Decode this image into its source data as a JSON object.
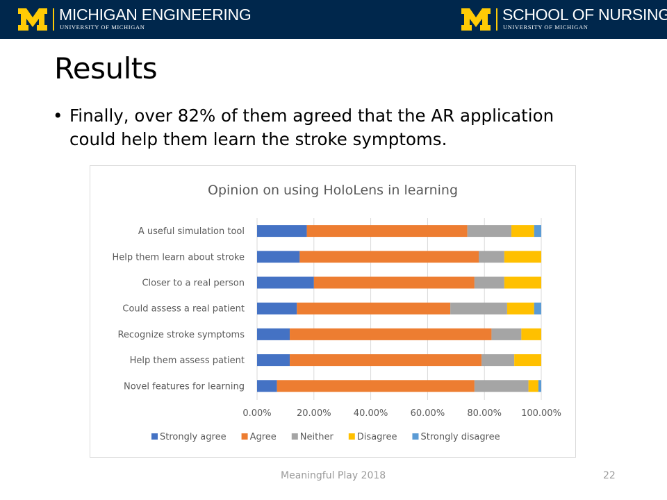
{
  "header": {
    "left_brand": {
      "name": "MICHIGAN ENGINEERING",
      "sub": "UNIVERSITY OF MICHIGAN"
    },
    "right_brand": {
      "name": "SCHOOL OF NURSING",
      "sub": "UNIVERSITY OF MICHIGAN"
    },
    "colors": {
      "navy": "#00274C",
      "maize": "#FFCB05"
    }
  },
  "slide": {
    "title": "Results",
    "bullet_symbol": "•",
    "bullet": "Finally, over 82% of them agreed that the AR application could help them learn the stroke symptoms."
  },
  "chart_data": {
    "type": "bar",
    "orientation": "horizontal",
    "stacked": "percent",
    "title": "Opinion on using HoloLens in learning",
    "xlabel": "",
    "ylabel": "",
    "xlim": [
      0,
      1
    ],
    "x_tick_labels": [
      "0.00%",
      "20.00%",
      "40.00%",
      "60.00%",
      "80.00%",
      "100.00%"
    ],
    "grid": true,
    "legend_position": "bottom",
    "categories": [
      "A useful simulation tool",
      "Help them learn about stroke",
      "Closer to a real person",
      "Could assess a real patient",
      "Recognize stroke symptoms",
      "Help them assess patient",
      "Novel features for learning"
    ],
    "series": [
      {
        "name": "Strongly agree",
        "color": "#4472C4",
        "values": [
          0.175,
          0.15,
          0.2,
          0.14,
          0.115,
          0.115,
          0.07
        ]
      },
      {
        "name": "Agree",
        "color": "#ED7D31",
        "values": [
          0.565,
          0.63,
          0.565,
          0.54,
          0.71,
          0.675,
          0.695
        ]
      },
      {
        "name": "Neither",
        "color": "#A5A5A5",
        "values": [
          0.155,
          0.09,
          0.105,
          0.2,
          0.105,
          0.115,
          0.19
        ]
      },
      {
        "name": "Disagree",
        "color": "#FFC000",
        "values": [
          0.08,
          0.13,
          0.13,
          0.095,
          0.07,
          0.095,
          0.035
        ]
      },
      {
        "name": "Strongly disagree",
        "color": "#5B9BD5",
        "values": [
          0.025,
          0.0,
          0.0,
          0.025,
          0.0,
          0.0,
          0.01
        ]
      }
    ]
  },
  "footer": {
    "text": "Meaningful Play 2018",
    "page": "22"
  }
}
